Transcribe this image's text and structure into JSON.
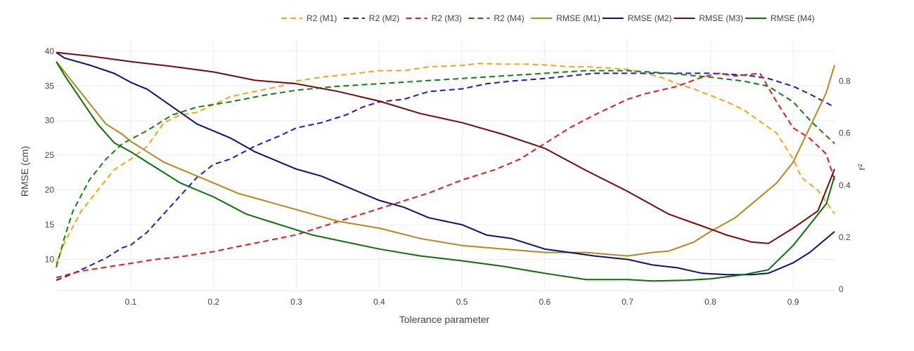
{
  "chart_data": {
    "type": "line",
    "xlabel": "Tolerance parameter",
    "ylabel_left": "RMSE (cm)",
    "ylabel_right": "r²",
    "xlim": [
      0.01,
      0.95
    ],
    "ylim_left": [
      5.5,
      41.5
    ],
    "ylim_right": [
      -0.005,
      0.955
    ],
    "x_ticks": [
      0.1,
      0.2,
      0.3,
      0.4,
      0.5,
      0.6,
      0.7,
      0.8,
      0.9
    ],
    "x_tick_labels": [
      "0.1",
      "0.2",
      "0.3",
      "0.4",
      "0.5",
      "0.6",
      "0.7",
      "0.8",
      "0.9"
    ],
    "y_left_ticks": [
      10,
      15,
      20,
      25,
      30,
      35,
      40
    ],
    "y_left_tick_labels": [
      "10",
      "15",
      "20",
      "25",
      "30",
      "35",
      "40"
    ],
    "y_right_ticks": [
      0,
      0.2,
      0.4,
      0.6,
      0.8
    ],
    "y_right_tick_labels": [
      "0",
      "0.2",
      "0.4",
      "0.6",
      "0.8"
    ],
    "grid": true,
    "legend_position": "top-right",
    "series": [
      {
        "name": "R2 (M1)",
        "axis": "right",
        "dash": "dash",
        "color": "#f2a516",
        "x": [
          0.01,
          0.02,
          0.04,
          0.06,
          0.08,
          0.1,
          0.12,
          0.14,
          0.16,
          0.18,
          0.2,
          0.22,
          0.25,
          0.28,
          0.3,
          0.33,
          0.36,
          0.4,
          0.43,
          0.46,
          0.5,
          0.52,
          0.55,
          0.58,
          0.6,
          0.63,
          0.65,
          0.68,
          0.7,
          0.72,
          0.74,
          0.76,
          0.78,
          0.8,
          0.82,
          0.84,
          0.86,
          0.88,
          0.9,
          0.91,
          0.93,
          0.95
        ],
        "y": [
          0.1,
          0.18,
          0.3,
          0.38,
          0.46,
          0.5,
          0.55,
          0.64,
          0.67,
          0.68,
          0.71,
          0.74,
          0.76,
          0.78,
          0.8,
          0.815,
          0.825,
          0.84,
          0.84,
          0.855,
          0.86,
          0.868,
          0.865,
          0.865,
          0.862,
          0.855,
          0.855,
          0.85,
          0.845,
          0.83,
          0.815,
          0.79,
          0.77,
          0.745,
          0.72,
          0.69,
          0.645,
          0.6,
          0.5,
          0.43,
          0.38,
          0.29
        ]
      },
      {
        "name": "R2 (M2)",
        "axis": "right",
        "dash": "dash",
        "color": "#1a1ad6",
        "x": [
          0.01,
          0.03,
          0.05,
          0.07,
          0.09,
          0.1,
          0.12,
          0.14,
          0.16,
          0.18,
          0.2,
          0.22,
          0.25,
          0.28,
          0.3,
          0.33,
          0.36,
          0.38,
          0.4,
          0.43,
          0.46,
          0.5,
          0.53,
          0.56,
          0.6,
          0.63,
          0.66,
          0.7,
          0.73,
          0.76,
          0.8,
          0.83,
          0.85,
          0.87,
          0.9,
          0.92,
          0.95
        ],
        "y": [
          0.035,
          0.06,
          0.09,
          0.12,
          0.16,
          0.17,
          0.22,
          0.29,
          0.36,
          0.43,
          0.48,
          0.5,
          0.55,
          0.59,
          0.62,
          0.64,
          0.67,
          0.7,
          0.72,
          0.73,
          0.76,
          0.77,
          0.79,
          0.8,
          0.81,
          0.82,
          0.83,
          0.83,
          0.83,
          0.83,
          0.83,
          0.825,
          0.82,
          0.81,
          0.78,
          0.75,
          0.7
        ]
      },
      {
        "name": "R2 (M3)",
        "axis": "right",
        "dash": "dash",
        "color": "#e8191b",
        "x": [
          0.01,
          0.04,
          0.07,
          0.1,
          0.13,
          0.16,
          0.2,
          0.23,
          0.27,
          0.3,
          0.33,
          0.36,
          0.39,
          0.42,
          0.46,
          0.5,
          0.54,
          0.57,
          0.6,
          0.63,
          0.66,
          0.7,
          0.72,
          0.76,
          0.79,
          0.81,
          0.83,
          0.86,
          0.88,
          0.9,
          0.92,
          0.94,
          0.95
        ],
        "y": [
          0.045,
          0.07,
          0.085,
          0.1,
          0.115,
          0.125,
          0.145,
          0.165,
          0.19,
          0.21,
          0.24,
          0.27,
          0.3,
          0.33,
          0.37,
          0.42,
          0.46,
          0.5,
          0.56,
          0.62,
          0.67,
          0.73,
          0.75,
          0.78,
          0.815,
          0.83,
          0.82,
          0.83,
          0.72,
          0.62,
          0.58,
          0.52,
          0.42
        ]
      },
      {
        "name": "R2 (M4)",
        "axis": "right",
        "dash": "dash",
        "color": "#118011",
        "x": [
          0.01,
          0.02,
          0.03,
          0.05,
          0.07,
          0.09,
          0.12,
          0.15,
          0.18,
          0.22,
          0.26,
          0.3,
          0.35,
          0.4,
          0.45,
          0.5,
          0.55,
          0.6,
          0.65,
          0.7,
          0.75,
          0.8,
          0.84,
          0.87,
          0.9,
          0.92,
          0.95
        ],
        "y": [
          0.085,
          0.2,
          0.3,
          0.42,
          0.5,
          0.56,
          0.61,
          0.67,
          0.7,
          0.72,
          0.745,
          0.765,
          0.78,
          0.79,
          0.8,
          0.81,
          0.82,
          0.83,
          0.84,
          0.84,
          0.83,
          0.815,
          0.8,
          0.78,
          0.72,
          0.65,
          0.56
        ]
      },
      {
        "name": "RMSE (M1)",
        "axis": "left",
        "dash": "solid",
        "color": "#b8861b",
        "x": [
          0.01,
          0.03,
          0.05,
          0.07,
          0.09,
          0.1,
          0.12,
          0.14,
          0.16,
          0.18,
          0.2,
          0.23,
          0.26,
          0.29,
          0.32,
          0.35,
          0.4,
          0.45,
          0.5,
          0.55,
          0.6,
          0.65,
          0.7,
          0.73,
          0.75,
          0.78,
          0.8,
          0.83,
          0.86,
          0.88,
          0.9,
          0.92,
          0.94,
          0.95
        ],
        "y": [
          38.5,
          35.5,
          32.5,
          29.5,
          28,
          27,
          25.5,
          24,
          23,
          22,
          21,
          19.5,
          18.5,
          17.5,
          16.5,
          15.5,
          14.5,
          13,
          12,
          11.5,
          11,
          11,
          10.5,
          11,
          11.2,
          12.5,
          14,
          16,
          19,
          21,
          24,
          29,
          34,
          38
        ]
      },
      {
        "name": "RMSE (M2)",
        "axis": "left",
        "dash": "solid",
        "color": "#0b1275",
        "x": [
          0.01,
          0.02,
          0.05,
          0.08,
          0.1,
          0.12,
          0.15,
          0.18,
          0.2,
          0.22,
          0.25,
          0.28,
          0.3,
          0.33,
          0.36,
          0.4,
          0.43,
          0.46,
          0.5,
          0.53,
          0.56,
          0.6,
          0.63,
          0.66,
          0.7,
          0.73,
          0.76,
          0.79,
          0.82,
          0.85,
          0.87,
          0.9,
          0.92,
          0.95
        ],
        "y": [
          39.8,
          39,
          38,
          36.8,
          35.5,
          34.5,
          32,
          29.5,
          28.5,
          27.5,
          25.5,
          24,
          23,
          22,
          20.5,
          18.5,
          17.5,
          16,
          15,
          13.5,
          13,
          11.5,
          11,
          10.5,
          10,
          9.2,
          8.8,
          8,
          7.8,
          7.8,
          8,
          9.5,
          11,
          14
        ]
      },
      {
        "name": "RMSE (M3)",
        "axis": "left",
        "dash": "solid",
        "color": "#7a0a0a",
        "x": [
          0.01,
          0.05,
          0.1,
          0.15,
          0.2,
          0.25,
          0.3,
          0.35,
          0.4,
          0.45,
          0.5,
          0.55,
          0.6,
          0.65,
          0.7,
          0.75,
          0.79,
          0.82,
          0.85,
          0.87,
          0.9,
          0.93,
          0.95
        ],
        "y": [
          39.8,
          39.3,
          38.5,
          37.8,
          37,
          35.8,
          35.3,
          34.2,
          32.8,
          31,
          29.7,
          28,
          26,
          22.8,
          19.8,
          16.5,
          14.8,
          13.5,
          12.5,
          12.3,
          14.5,
          17,
          23
        ]
      },
      {
        "name": "RMSE (M4)",
        "axis": "left",
        "dash": "solid",
        "color": "#0a6e0a",
        "x": [
          0.01,
          0.02,
          0.04,
          0.06,
          0.08,
          0.1,
          0.12,
          0.14,
          0.16,
          0.2,
          0.24,
          0.28,
          0.32,
          0.36,
          0.4,
          0.45,
          0.5,
          0.55,
          0.6,
          0.65,
          0.7,
          0.73,
          0.77,
          0.8,
          0.84,
          0.87,
          0.9,
          0.92,
          0.94,
          0.95
        ],
        "y": [
          38.5,
          36.5,
          33,
          29.5,
          26.8,
          25.5,
          24,
          22.5,
          21,
          19,
          16.5,
          15,
          13.5,
          12.5,
          11.5,
          10.5,
          9.8,
          9,
          8,
          7.1,
          7.1,
          6.9,
          7,
          7.2,
          7.8,
          8.5,
          12,
          15,
          18,
          22
        ]
      }
    ]
  }
}
